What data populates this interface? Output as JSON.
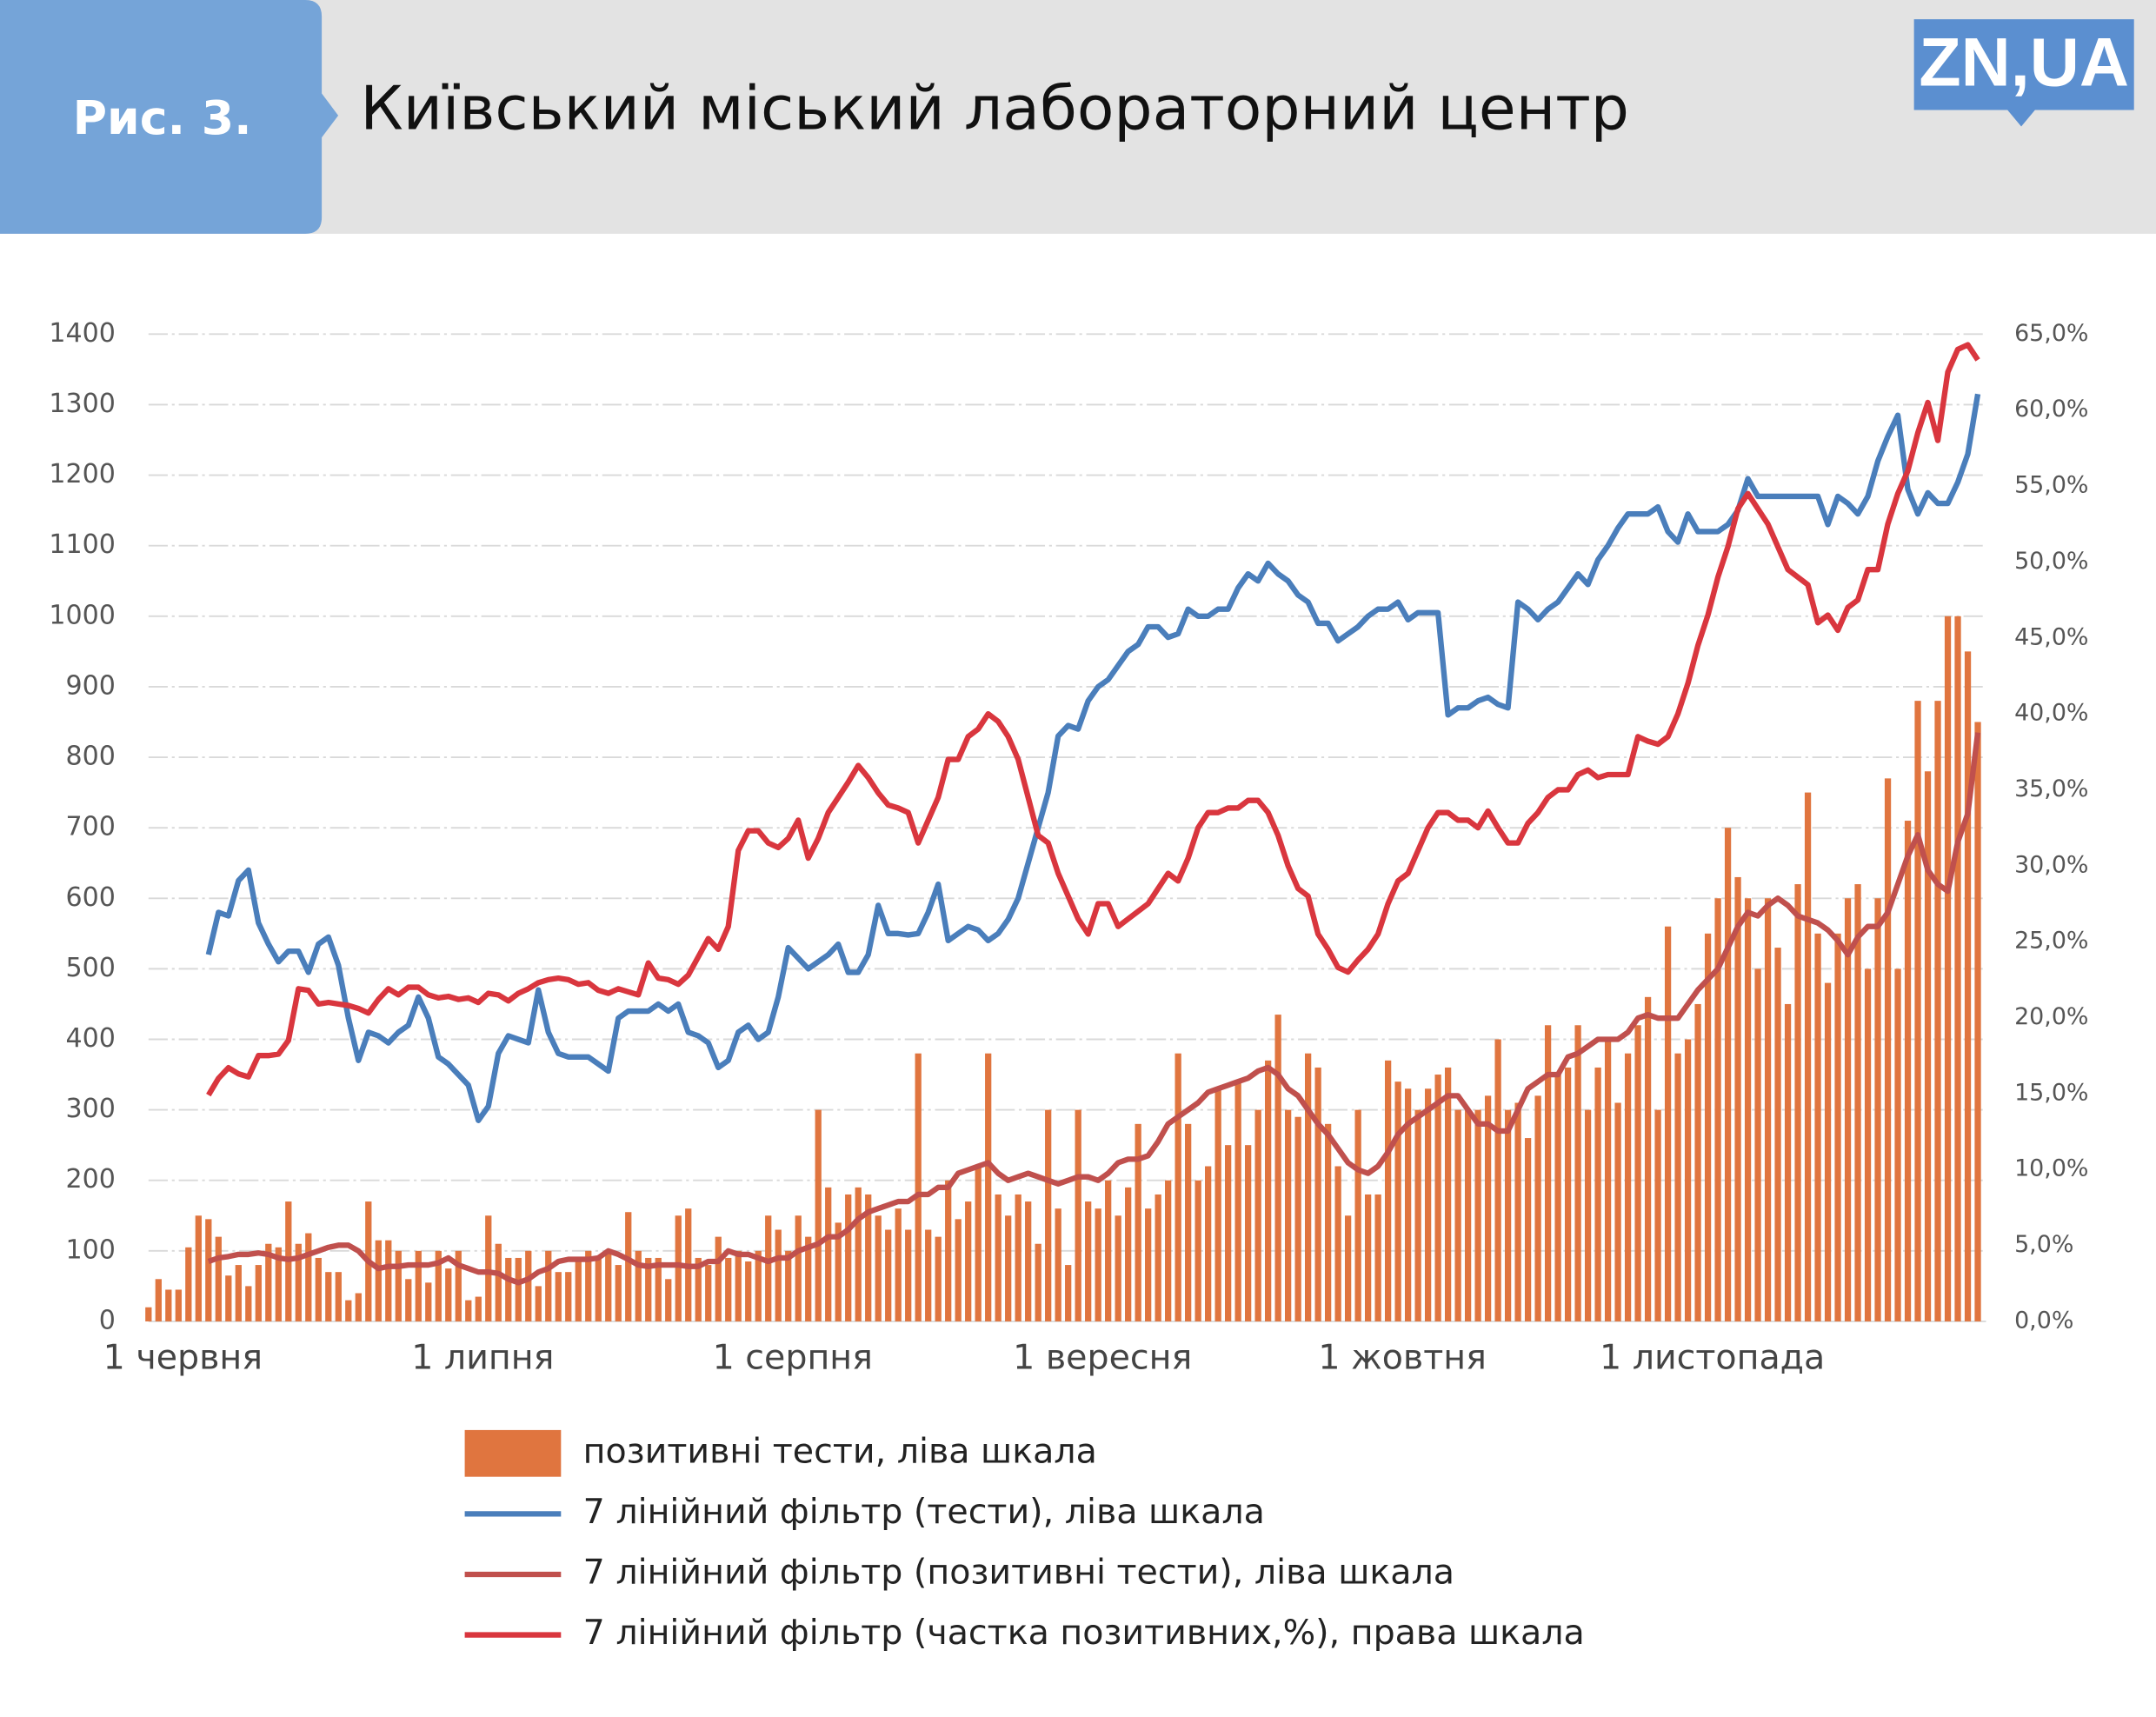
{
  "header": {
    "figure": "Рис. 3.",
    "logo": "ZN,UA"
  },
  "chart_data": {
    "type": "combo",
    "title": "Київський міський лабораторний центр",
    "categories": [
      "1 червня",
      null,
      null,
      null,
      null,
      null,
      null,
      null,
      null,
      null,
      null,
      null,
      null,
      null,
      null,
      null,
      null,
      null,
      null,
      null,
      null,
      null,
      null,
      null,
      null,
      null,
      null,
      null,
      null,
      null,
      "1 липня",
      null,
      null,
      null,
      null,
      null,
      null,
      null,
      null,
      null,
      null,
      null,
      null,
      null,
      null,
      null,
      null,
      null,
      null,
      null,
      null,
      null,
      null,
      null,
      null,
      null,
      null,
      null,
      null,
      null,
      null,
      "1 серпня",
      null,
      null,
      null,
      null,
      null,
      null,
      null,
      null,
      null,
      null,
      null,
      null,
      null,
      null,
      null,
      null,
      null,
      null,
      null,
      null,
      null,
      null,
      null,
      null,
      null,
      null,
      null,
      null,
      null,
      null,
      "1 вересня",
      null,
      null,
      null,
      null,
      null,
      null,
      null,
      null,
      null,
      null,
      null,
      null,
      null,
      null,
      null,
      null,
      null,
      null,
      null,
      null,
      null,
      null,
      null,
      null,
      null,
      null,
      null,
      null,
      null,
      "1 жовтня",
      null,
      null,
      null,
      null,
      null,
      null,
      null,
      null,
      null,
      null,
      null,
      null,
      null,
      null,
      null,
      null,
      null,
      null,
      null,
      null,
      null,
      null,
      null,
      null,
      null,
      null,
      null,
      null,
      null,
      null,
      "1 листопада",
      null,
      null,
      null,
      null,
      null,
      null,
      null,
      null,
      null,
      null,
      null,
      null,
      null,
      null,
      null,
      null,
      null,
      null,
      null,
      null,
      null,
      null,
      null,
      null,
      null,
      null,
      null,
      null,
      null,
      null
    ],
    "series": [
      {
        "name": "позитивні тести, ліва шкала",
        "type": "bar",
        "color": "#e0753f",
        "values": [
          20,
          60,
          45,
          45,
          105,
          150,
          145,
          120,
          65,
          80,
          50,
          80,
          110,
          105,
          170,
          110,
          125,
          90,
          70,
          70,
          30,
          40,
          170,
          115,
          115,
          100,
          60,
          100,
          55,
          100,
          75,
          100,
          30,
          35,
          150,
          110,
          90,
          90,
          100,
          50,
          100,
          70,
          70,
          90,
          100,
          90,
          100,
          80,
          155,
          100,
          90,
          90,
          60,
          150,
          160,
          90,
          80,
          120,
          90,
          100,
          85,
          100,
          150,
          130,
          100,
          150,
          120,
          300,
          190,
          140,
          180,
          190,
          180,
          150,
          130,
          160,
          130,
          380,
          130,
          120,
          200,
          145,
          170,
          220,
          380,
          180,
          150,
          180,
          170,
          110,
          300,
          160,
          80,
          300,
          170,
          160,
          200,
          150,
          190,
          280,
          160,
          180,
          200,
          380,
          280,
          200,
          220,
          330,
          250,
          340,
          250,
          300,
          370,
          435,
          300,
          290,
          380,
          360,
          280,
          220,
          150,
          300,
          180,
          180,
          370,
          340,
          330,
          300,
          330,
          350,
          360,
          300,
          300,
          300,
          320,
          400,
          300,
          310,
          260,
          320,
          420,
          350,
          360,
          420,
          300,
          360,
          400,
          310,
          380,
          420,
          460,
          300,
          560,
          380,
          400,
          450,
          550,
          600,
          700,
          630,
          600,
          500,
          600,
          530,
          450,
          620,
          750,
          550,
          480,
          550,
          600,
          620,
          500,
          600,
          770,
          500,
          710,
          880,
          780,
          880,
          1000,
          1000,
          950,
          850
        ]
      },
      {
        "name": "7 лінійний фільтр (тести), ліва шкала",
        "type": "line",
        "color": "#4a7ebb",
        "values": [
          null,
          null,
          null,
          null,
          null,
          null,
          520,
          580,
          575,
          625,
          640,
          565,
          535,
          510,
          525,
          525,
          495,
          535,
          545,
          505,
          430,
          370,
          410,
          405,
          395,
          410,
          420,
          460,
          430,
          375,
          365,
          350,
          335,
          285,
          305,
          380,
          405,
          400,
          395,
          470,
          410,
          380,
          375,
          375,
          375,
          365,
          355,
          430,
          440,
          440,
          440,
          450,
          440,
          450,
          410,
          405,
          395,
          360,
          370,
          410,
          420,
          400,
          410,
          460,
          530,
          515,
          500,
          510,
          520,
          535,
          495,
          495,
          520,
          590,
          550,
          550,
          548,
          550,
          580,
          620,
          540,
          550,
          560,
          555,
          540,
          550,
          570,
          600,
          650,
          700,
          750,
          830,
          845,
          840,
          880,
          900,
          910,
          930,
          950,
          960,
          985,
          985,
          970,
          975,
          1010,
          1000,
          1000,
          1010,
          1010,
          1040,
          1060,
          1050,
          1075,
          1060,
          1050,
          1030,
          1020,
          990,
          990,
          965,
          975,
          985,
          1000,
          1010,
          1010,
          1020,
          995,
          1005,
          1005,
          1005,
          860,
          870,
          870,
          880,
          885,
          875,
          870,
          1020,
          1010,
          995,
          1010,
          1020,
          1040,
          1060,
          1045,
          1080,
          1100,
          1125,
          1145,
          1145,
          1145,
          1155,
          1120,
          1105,
          1145,
          1120,
          1120,
          1120,
          1130,
          1150,
          1195,
          1170,
          1170,
          1170,
          1170,
          1170,
          1170,
          1170,
          1130,
          1170,
          1160,
          1145,
          1170,
          1220,
          1255,
          1285,
          1180,
          1145,
          1175,
          1160,
          1160,
          1190,
          1230,
          1315
        ]
      },
      {
        "name": "7 лінійний фільтр (позитивні тести), ліва шкала",
        "type": "line",
        "color": "#c0504d",
        "values": [
          null,
          null,
          null,
          null,
          null,
          null,
          85,
          90,
          92,
          95,
          95,
          97,
          95,
          90,
          88,
          90,
          95,
          100,
          105,
          108,
          108,
          100,
          85,
          75,
          78,
          78,
          80,
          80,
          80,
          83,
          90,
          80,
          75,
          70,
          70,
          68,
          60,
          55,
          60,
          70,
          75,
          85,
          88,
          88,
          88,
          90,
          100,
          95,
          88,
          80,
          78,
          80,
          80,
          80,
          78,
          78,
          85,
          85,
          100,
          95,
          95,
          90,
          85,
          90,
          90,
          100,
          105,
          110,
          120,
          120,
          130,
          145,
          155,
          160,
          165,
          170,
          170,
          180,
          180,
          190,
          190,
          210,
          215,
          220,
          225,
          210,
          200,
          205,
          210,
          205,
          200,
          195,
          200,
          205,
          205,
          200,
          210,
          225,
          230,
          230,
          235,
          255,
          280,
          290,
          300,
          310,
          325,
          330,
          335,
          340,
          345,
          355,
          360,
          350,
          330,
          320,
          300,
          280,
          265,
          245,
          225,
          215,
          210,
          220,
          240,
          265,
          280,
          290,
          300,
          310,
          320,
          320,
          300,
          280,
          280,
          270,
          270,
          300,
          330,
          340,
          350,
          350,
          375,
          380,
          390,
          400,
          400,
          400,
          410,
          430,
          435,
          430,
          430,
          430,
          450,
          470,
          485,
          500,
          530,
          560,
          580,
          575,
          590,
          600,
          590,
          575,
          570,
          565,
          555,
          540,
          520,
          545,
          560,
          560,
          580,
          620,
          660,
          690,
          640,
          620,
          610,
          680,
          720,
          835
        ]
      },
      {
        "name": "7 лінійний фільтр (частка позитивних,%), права шкала",
        "type": "line",
        "axis": "y2",
        "color": "#d9363e",
        "values": [
          null,
          null,
          null,
          null,
          null,
          null,
          14.9,
          16,
          16.7,
          16.3,
          16.1,
          17.5,
          17.5,
          17.6,
          18.5,
          21.9,
          21.8,
          20.9,
          21.0,
          20.9,
          20.8,
          20.6,
          20.3,
          21.2,
          21.9,
          21.5,
          22.0,
          22.0,
          21.5,
          21.3,
          21.4,
          21.2,
          21.3,
          21.0,
          21.6,
          21.5,
          21.1,
          21.6,
          21.9,
          22.3,
          22.5,
          22.6,
          22.5,
          22.2,
          22.3,
          21.8,
          21.6,
          21.9,
          21.7,
          21.5,
          23.6,
          22.6,
          22.5,
          22.2,
          22.8,
          24.0,
          25.2,
          24.5,
          26.0,
          31.0,
          32.3,
          32.3,
          31.5,
          31.2,
          31.8,
          33.0,
          30.5,
          31.8,
          33.5,
          34.5,
          35.5,
          36.6,
          35.8,
          34.8,
          34.0,
          33.8,
          33.5,
          31.5,
          33.0,
          34.5,
          37.0,
          37.0,
          38.5,
          39.0,
          40.0,
          39.5,
          38.5,
          37.0,
          34.5,
          32.0,
          31.5,
          29.5,
          28,
          26.5,
          25.5,
          27.5,
          27.5,
          26,
          26.5,
          27,
          27.5,
          28.5,
          29.5,
          29,
          30.5,
          32.5,
          33.5,
          33.5,
          33.8,
          33.8,
          34.3,
          34.3,
          33.5,
          32,
          30,
          28.5,
          28,
          25.5,
          24.5,
          23.3,
          23,
          23.8,
          24.5,
          25.5,
          27.5,
          29,
          29.5,
          31,
          32.5,
          33.5,
          33.5,
          33,
          33,
          32.5,
          33.6,
          32.5,
          31.5,
          31.5,
          32.8,
          33.5,
          34.5,
          35,
          35,
          36,
          36.3,
          35.8,
          36,
          36,
          36,
          38.5,
          38.2,
          38,
          38.5,
          40,
          42,
          44.5,
          46.5,
          49,
          51,
          53.5,
          54.5,
          53.5,
          52.5,
          51,
          49.5,
          49,
          48.5,
          46,
          46.5,
          45.5,
          47,
          47.5,
          49.5,
          49.5,
          52.5,
          54.5,
          56,
          58.5,
          60.5,
          58,
          62.5,
          64,
          64.3,
          63.3
        ]
      }
    ],
    "ylim": [
      0,
      1400
    ],
    "yticks": [
      0,
      100,
      200,
      300,
      400,
      500,
      600,
      700,
      800,
      900,
      1000,
      1100,
      1200,
      1300,
      1400
    ],
    "y2lim": [
      0,
      65
    ],
    "y2ticks": [
      {
        "value": 0,
        "label": "0,0%"
      },
      {
        "value": 5,
        "label": "5,0%"
      },
      {
        "value": 10,
        "label": "10,0%"
      },
      {
        "value": 15,
        "label": "15,0%"
      },
      {
        "value": 20,
        "label": "20,0%"
      },
      {
        "value": 25,
        "label": "25,0%"
      },
      {
        "value": 30,
        "label": "30,0%"
      },
      {
        "value": 35,
        "label": "35,0%"
      },
      {
        "value": 40,
        "label": "40,0%"
      },
      {
        "value": 45,
        "label": "45,0%"
      },
      {
        "value": 50,
        "label": "50,0%"
      },
      {
        "value": 55,
        "label": "55,0%"
      },
      {
        "value": 60,
        "label": "60,0%"
      },
      {
        "value": 65,
        "label": "65,0%"
      }
    ],
    "grid": true,
    "legend": "bottom"
  }
}
